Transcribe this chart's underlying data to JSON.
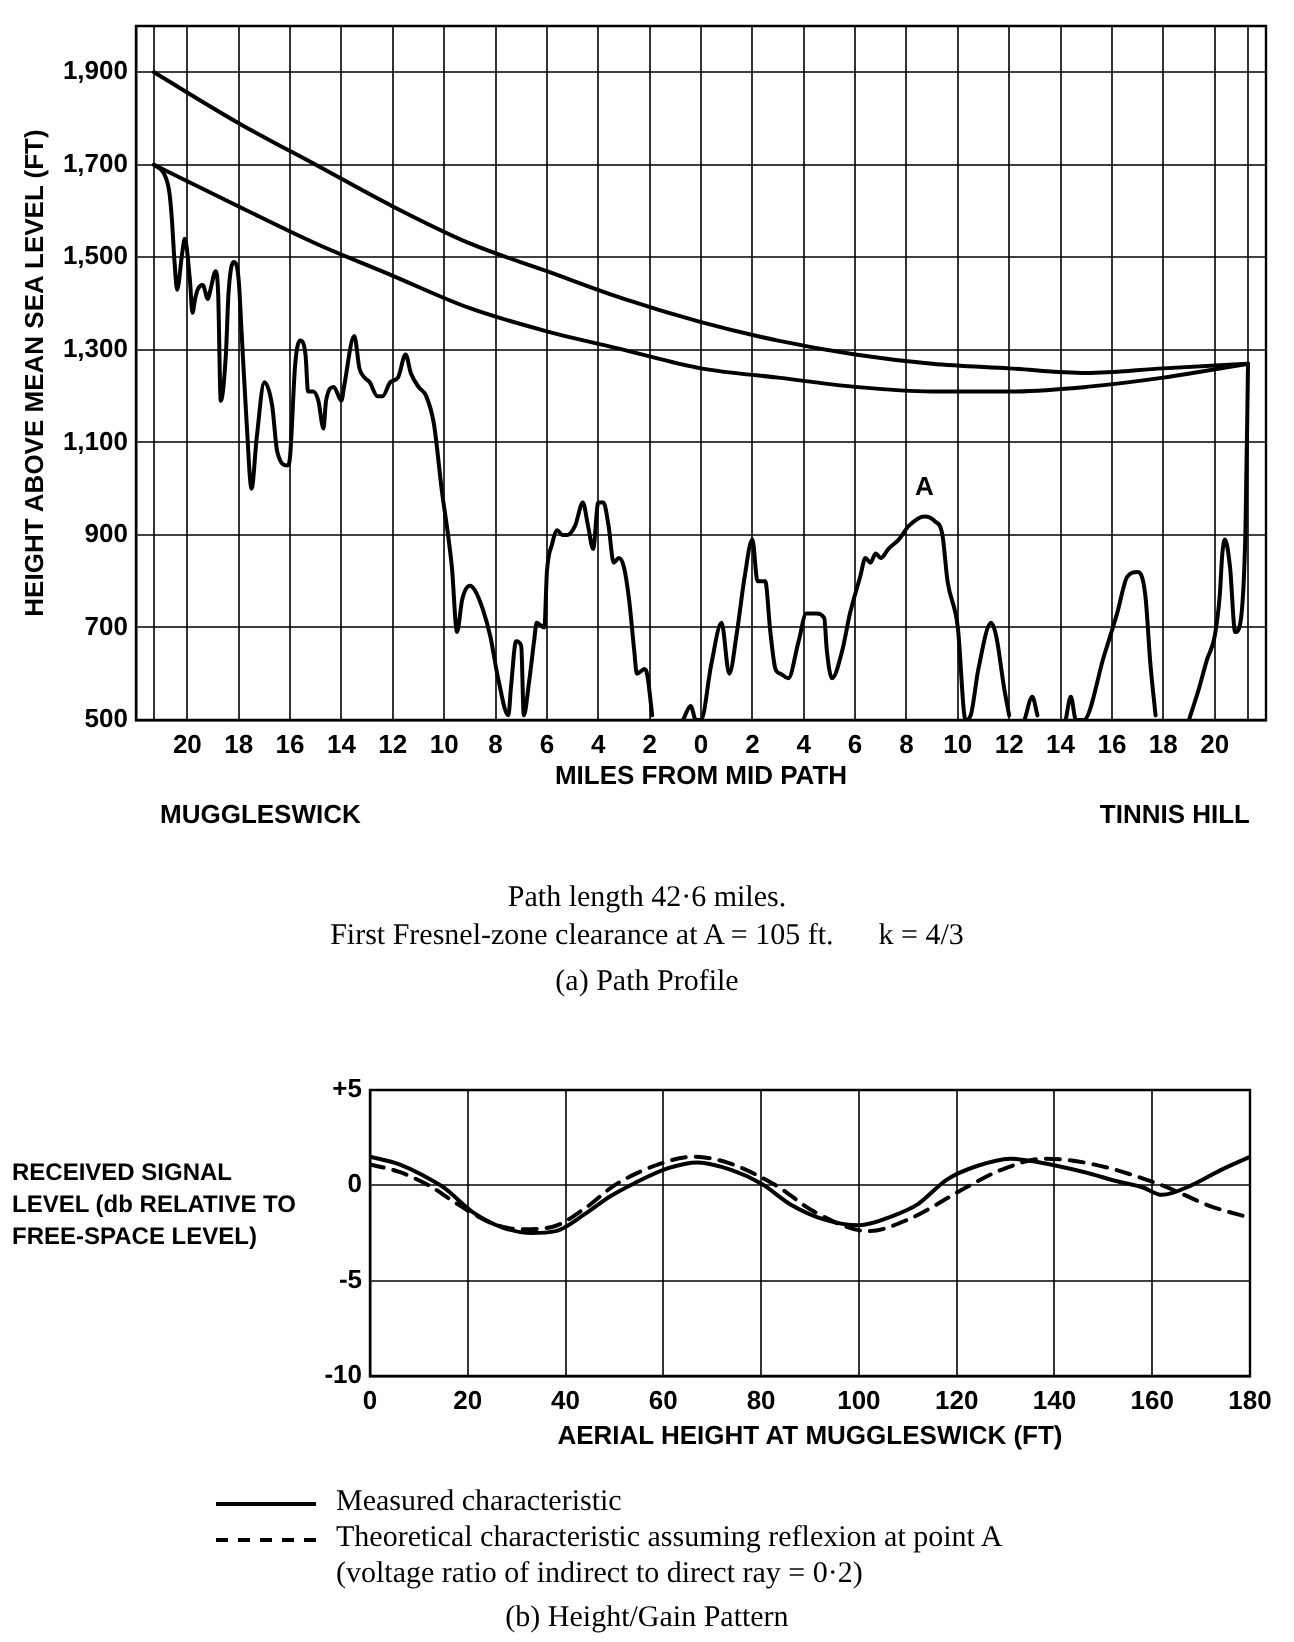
{
  "chart_data": [
    {
      "type": "line",
      "title": "(a) Path Profile",
      "xlabel": "MILES FROM MID PATH",
      "ylabel": "HEIGHT ABOVE MEAN SEA LEVEL (FT)",
      "xlim": [
        -22,
        22
      ],
      "xticks": [
        {
          "value": -21.3,
          "label": null
        },
        {
          "value": -20,
          "label": "20"
        },
        {
          "value": -18,
          "label": "18"
        },
        {
          "value": -16,
          "label": "16"
        },
        {
          "value": -14,
          "label": "14"
        },
        {
          "value": -12,
          "label": "12"
        },
        {
          "value": -10,
          "label": "10"
        },
        {
          "value": -8,
          "label": "8"
        },
        {
          "value": -6,
          "label": "6"
        },
        {
          "value": -4,
          "label": "4"
        },
        {
          "value": -2,
          "label": "2"
        },
        0,
        2,
        4,
        6,
        8,
        10,
        12,
        14,
        16,
        18,
        20,
        {
          "value": 21.3,
          "label": null
        }
      ],
      "ylim": [
        500,
        2000
      ],
      "yticks": [
        500,
        700,
        900,
        {
          "value": 1100,
          "label": "1,100"
        },
        {
          "value": 1300,
          "label": "1,300"
        },
        {
          "value": 1500,
          "label": "1,500"
        },
        {
          "value": 1700,
          "label": "1,700"
        },
        {
          "value": 1900,
          "label": "1,900"
        }
      ],
      "series": [
        {
          "color": "#000000",
          "x": [
            -21.3,
            -20.9,
            -20.7,
            -20.6,
            -20.5,
            -20.4,
            -20.2,
            -20.1,
            -19.9,
            -19.8,
            -19.7,
            -19.6,
            -19.4,
            -19.2,
            -19.1,
            -18.9,
            -18.8,
            -18.7,
            -18.5,
            -18.4,
            -18.2,
            -18.0,
            -17.9,
            -17.7,
            -17.5,
            -17.3,
            -17.0,
            -16.7,
            -16.5,
            -16.1,
            -16.0,
            -15.8,
            -15.6,
            -15.4,
            -15.3,
            -15.1,
            -14.9,
            -14.7,
            -14.6,
            -14.3,
            -14.0,
            -13.9,
            -13.5,
            -13.3,
            -13.1,
            -12.9,
            -12.6,
            -12.4,
            -12.1,
            -11.8,
            -11.5,
            -11.3,
            -11.0,
            -10.7,
            -10.4,
            -10.1,
            -9.7,
            -9.5,
            -9.3,
            -9.0,
            -8.8,
            -8.5,
            -8.2,
            -7.9,
            -7.5,
            -7.4,
            -7.2,
            -7.0,
            -6.9,
            -6.7,
            -6.5,
            -6.4,
            -6.1,
            -6.0,
            -5.8,
            -5.6,
            -5.4,
            -5.2,
            -4.9,
            -4.6,
            -4.4,
            -4.2,
            -4.0,
            -3.8,
            -3.6,
            -3.4,
            -3.2,
            -3.0,
            -2.8,
            -2.6,
            -2.5,
            -2.2,
            -2.1,
            -1.9,
            -1.3,
            -0.7,
            -0.4,
            -0.2,
            0,
            0.4,
            0.8,
            1.1,
            1.4,
            1.7,
            2.0,
            2.2,
            2.5,
            2.7,
            2.9,
            3.1,
            3.4,
            3.8,
            4.1,
            4.3,
            4.5,
            4.8,
            4.9,
            5.1,
            5.5,
            5.8,
            6.2,
            6.4,
            6.6,
            6.8,
            7.0,
            7.3,
            7.7,
            8.1,
            8.7,
            9.1,
            9.4,
            9.6,
            10.0,
            10.3,
            10.5,
            10.8,
            11.3,
            11.5,
            11.8,
            12.0,
            12.3,
            12.6,
            12.9,
            13.1,
            13.6,
            14.2,
            14.4,
            14.6,
            14.9,
            15.7,
            16.2,
            16.6,
            17.0,
            17.3,
            17.5,
            17.7,
            18.3,
            19.0,
            19.4,
            19.7,
            20.0,
            20.2,
            20.3,
            20.4,
            20.6,
            20.8,
            21.0,
            21.2,
            21.3
          ],
          "values": [
            1700,
            1680,
            1640,
            1580,
            1490,
            1430,
            1510,
            1540,
            1450,
            1380,
            1410,
            1430,
            1440,
            1410,
            1430,
            1470,
            1420,
            1190,
            1290,
            1420,
            1490,
            1450,
            1350,
            1150,
            1000,
            1110,
            1230,
            1180,
            1080,
            1050,
            1070,
            1270,
            1320,
            1290,
            1210,
            1210,
            1190,
            1130,
            1190,
            1220,
            1190,
            1220,
            1330,
            1260,
            1240,
            1230,
            1200,
            1200,
            1230,
            1240,
            1290,
            1250,
            1220,
            1200,
            1140,
            1000,
            830,
            690,
            760,
            790,
            780,
            740,
            680,
            590,
            510,
            570,
            670,
            660,
            510,
            580,
            670,
            710,
            700,
            820,
            880,
            910,
            900,
            900,
            920,
            970,
            920,
            870,
            970,
            970,
            920,
            840,
            850,
            830,
            760,
            650,
            600,
            610,
            600,
            510,
            null,
            500,
            530,
            500,
            500,
            620,
            710,
            600,
            690,
            810,
            890,
            800,
            800,
            690,
            610,
            600,
            590,
            670,
            730,
            730,
            730,
            720,
            650,
            590,
            650,
            730,
            810,
            850,
            840,
            860,
            850,
            870,
            890,
            920,
            940,
            930,
            900,
            800,
            700,
            500,
            510,
            610,
            710,
            680,
            570,
            510,
            null,
            500,
            550,
            510,
            null,
            500,
            550,
            500,
            500,
            640,
            730,
            810,
            820,
            770,
            620,
            510,
            null,
            500,
            570,
            630,
            680,
            770,
            860,
            890,
            830,
            690,
            710,
            910,
            1270
          ]
        },
        {
          "color": "#000000",
          "x": [
            -21.3,
            -18,
            -15,
            -12,
            -9,
            -6,
            -3,
            0,
            3,
            6,
            9,
            12,
            15,
            18,
            21.3
          ],
          "values": [
            1900,
            1790,
            1700,
            1610,
            1530,
            1470,
            1410,
            1360,
            1320,
            1290,
            1270,
            1260,
            1250,
            1260,
            1270
          ]
        },
        {
          "color": "#000000",
          "x": [
            -21.3,
            -18,
            -15,
            -12,
            -9,
            -6,
            -3,
            0,
            3,
            6,
            9,
            12,
            15,
            18,
            21.3
          ],
          "values": [
            1700,
            1610,
            1530,
            1460,
            1390,
            1340,
            1300,
            1260,
            1240,
            1220,
            1210,
            1210,
            1220,
            1240,
            1270
          ]
        }
      ],
      "annotations": [
        {
          "text": "A",
          "x": 8.7,
          "y": 940
        },
        "MUGGLESWICK",
        "TINNIS HILL",
        "Path length 42·6 miles.",
        "First Fresnel-zone clearance at A = 105 ft.      k = 4/3"
      ],
      "grid": true
    },
    {
      "type": "line",
      "title": "(b) Height/Gain Pattern",
      "xlabel": "AERIAL HEIGHT AT MUGGLESWICK (FT)",
      "ylabel": "RECEIVED SIGNAL LEVEL (db RELATIVE TO FREE-SPACE LEVEL)",
      "xlim": [
        0,
        180
      ],
      "xticks": [
        0,
        20,
        40,
        60,
        80,
        100,
        120,
        140,
        160,
        180
      ],
      "ylim": [
        -10,
        5
      ],
      "yticks": [
        {
          "value": 5,
          "label": "+5"
        },
        0,
        -5,
        -10
      ],
      "series": [
        {
          "name": "Measured characteristic",
          "color": "#000000",
          "line_style": "solid",
          "x": [
            0,
            6,
            11,
            15,
            21,
            27,
            33,
            38,
            44,
            49,
            54,
            61,
            67,
            74,
            80,
            86,
            93,
            100,
            107,
            112,
            118,
            124,
            131,
            137,
            146,
            153,
            158,
            162,
            168,
            174,
            180
          ],
          "values": [
            1.5,
            1.1,
            0.5,
            -0.1,
            -1.4,
            -2.2,
            -2.5,
            -2.4,
            -1.5,
            -0.6,
            0.1,
            0.9,
            1.2,
            0.8,
            0.1,
            -1.0,
            -1.8,
            -2.1,
            -1.6,
            -1.0,
            0.3,
            1.0,
            1.4,
            1.2,
            0.7,
            0.2,
            -0.1,
            -0.5,
            0,
            0.8,
            1.5
          ]
        },
        {
          "name": "Theoretical characteristic assuming reflexion at point A (voltage ratio of indirect to direct ray = 0·2)",
          "color": "#000000",
          "line_style": "dashed",
          "x": [
            0,
            6,
            12,
            18,
            25,
            31,
            37,
            44,
            50,
            59,
            66,
            73,
            83,
            91,
            102,
            110,
            122,
            129,
            138,
            148,
            162,
            172,
            180
          ],
          "values": [
            1.1,
            0.7,
            0,
            -1.0,
            -2.0,
            -2.3,
            -2.2,
            -1.2,
            0,
            1.1,
            1.5,
            1.2,
            0,
            -1.4,
            -2.4,
            -1.8,
            -0.1,
            0.8,
            1.4,
            1.1,
            0,
            -1.1,
            -1.7
          ]
        }
      ],
      "grid": true,
      "legend": "bottom"
    }
  ]
}
